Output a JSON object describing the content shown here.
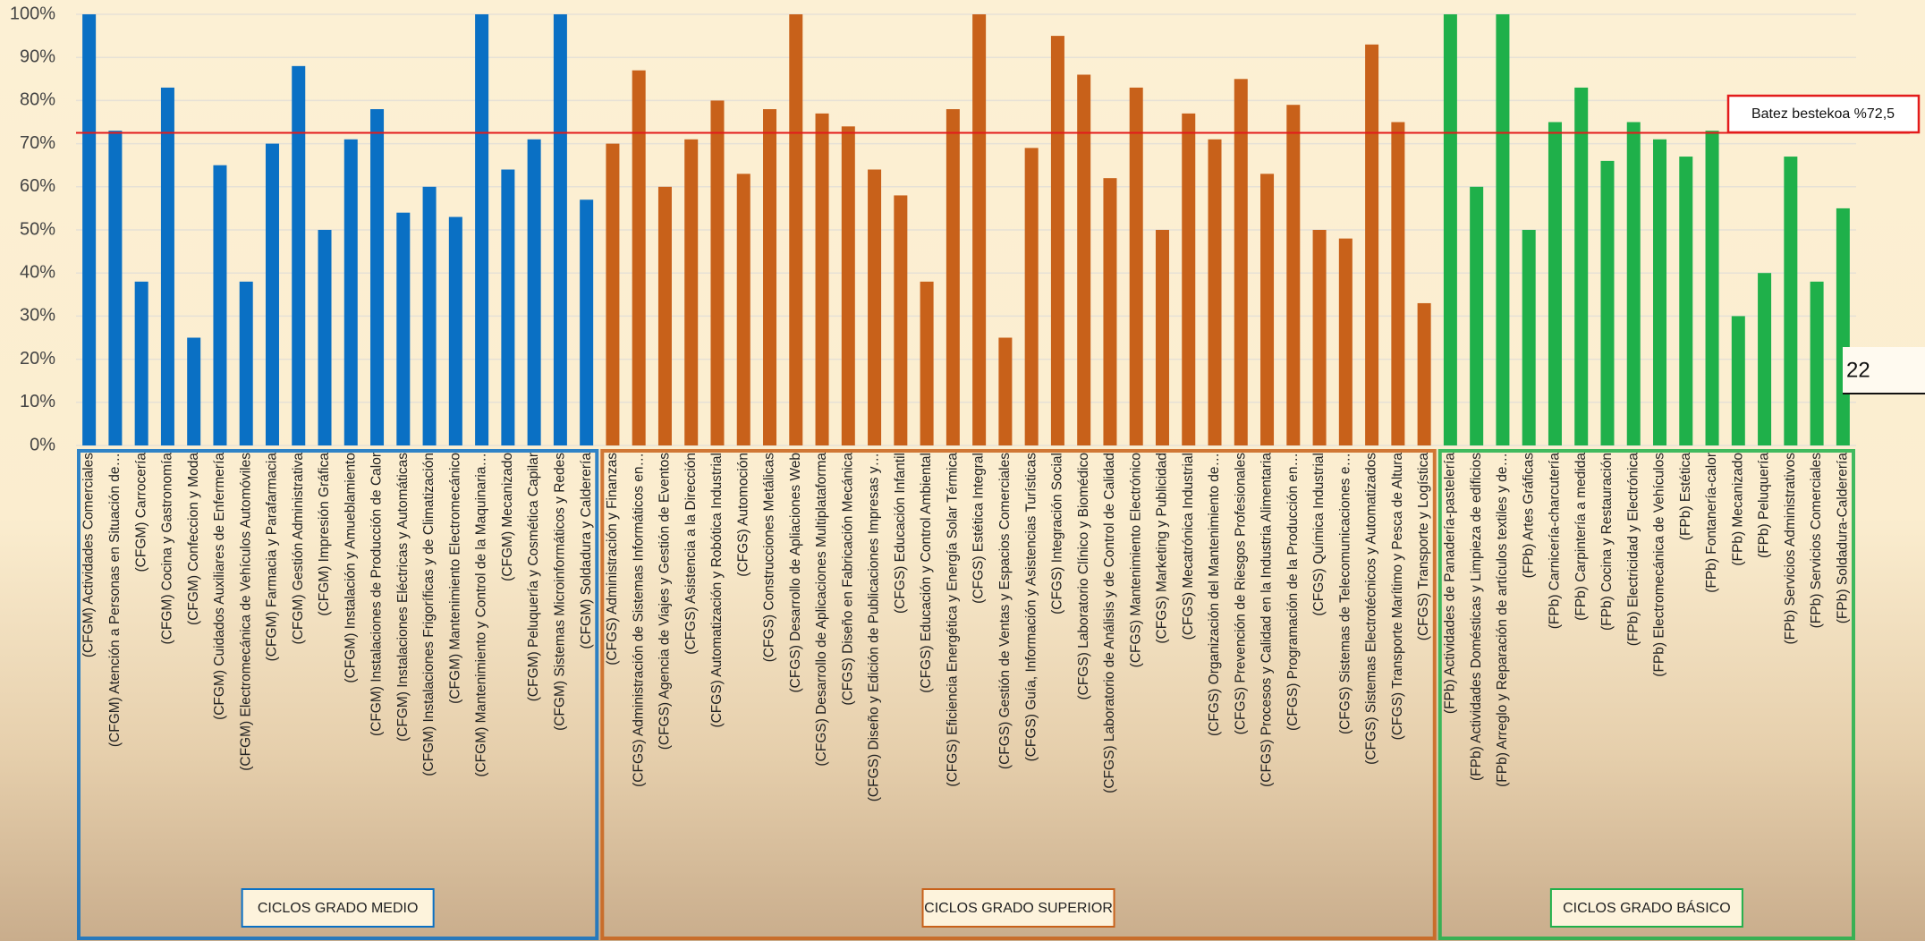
{
  "chart_data": {
    "type": "bar",
    "ylim": [
      0,
      100
    ],
    "yticks": [
      {
        "value": 0,
        "label": "0%"
      },
      {
        "value": 10,
        "label": "10%"
      },
      {
        "value": 20,
        "label": "20%"
      },
      {
        "value": 30,
        "label": "30%"
      },
      {
        "value": 40,
        "label": "40%"
      },
      {
        "value": 50,
        "label": "50%"
      },
      {
        "value": 60,
        "label": "60%"
      },
      {
        "value": 70,
        "label": "70%"
      },
      {
        "value": 80,
        "label": "80%"
      },
      {
        "value": 90,
        "label": "90%"
      },
      {
        "value": 100,
        "label": "100%"
      }
    ],
    "grid": true,
    "reference_line": {
      "value": 72.5,
      "label": "Batez bestekoa %72,5",
      "color": "#e31b1b"
    },
    "side_note": "22",
    "groups": [
      {
        "name": "CICLOS GRADO MEDIO",
        "color": "#0a70c4",
        "categories": [
          "(CFGM) Actividades Comerciales",
          "(CFGM) Atención a Personas en Situación de…",
          "(CFGM) Carrocería",
          "(CFGM) Cocina y Gastronomía",
          "(CFGM) Confeccion y Moda",
          "(CFGM) Cuidados Auxiliares de Enfermería",
          "(CFGM) Electromecánica de Vehículos Automóviles",
          "(CFGM) Farmacia y Parafarmacia",
          "(CFGM) Gestión Administrativa",
          "(CFGM) Impresión Gráfica",
          "(CFGM) Instalación y Amueblamiento",
          "(CFGM) Instalaciones de Producción de Calor",
          "(CFGM) Instalaciones Eléctricas y Automáticas",
          "(CFGM) Instalaciones Frigoríficas y de Climatización",
          "(CFGM) Mantenimiento Electromecánico",
          "(CFGM) Mantenimiento y Control de la Maquinaria…",
          "(CFGM) Mecanizado",
          "(CFGM) Peluquería y Cosmética Capilar",
          "(CFGM) Sistemas Microinformáticos y Redes",
          "(CFGM) Soldadura y Calderería"
        ],
        "values": [
          100,
          73,
          38,
          83,
          25,
          65,
          38,
          70,
          88,
          50,
          71,
          78,
          54,
          60,
          53,
          100,
          64,
          71,
          100,
          57
        ]
      },
      {
        "name": "CICLOS GRADO SUPERIOR",
        "color": "#c8611a",
        "categories": [
          "(CFGS) Administración y Finanzas",
          "(CFGS) Administración de Sistemas Informáticos en…",
          "(CFGS) Agencia de Viajes y Gestión de Eventos",
          "(CFGS) Asistencia a la Dirección",
          "(CFGS) Automatización y Robótica Industrial",
          "(CFGS) Automoción",
          "(CFGS) Construcciones Metálicas",
          "(CFGS) Desarrollo de Apliaciones Web",
          "(CFGS) Desarrollo de Aplicaciones Multiplataforma",
          "(CFGS) Diseño en Fabricación Mecánica",
          "(CFGS) Diseño y Edición de Publicaciones Impresas y…",
          "(CFGS) Educación Infantil",
          "(CFGS) Educación y Control Ambiental",
          "(CFGS) Eficiencia Energética y Energía Solar Térmica",
          "(CFGS) Estética Integral",
          "(CFGS) Gestión de Ventas y Espacios Comerciales",
          "(CFGS) Guía, Información y Asistencias Turísticas",
          "(CFGS) Integración Social",
          "(CFGS) Laboratorio Clínico y Biomédico",
          "(CFGS) Laboratorio de Análisis y de Control de Calidad",
          "(CFGS) Mantenimiento Electrónico",
          "(CFGS) Marketing y Publicidad",
          "(CFGS) Mecatrónica Industrial",
          "(CFGS) Organización del Mantenimiento de…",
          "(CFGS) Prevención de Riesgos Profesionales",
          "(CFGS) Procesos y Calidad en la Industria Alimentaria",
          "(CFGS) Programación de la Producción en…",
          "(CFGS) Química Industrial",
          "(CFGS) Sistemas de Telecomunicaciones e…",
          "(CFGS) Sistemas Electrotécnicos y Automatizados",
          "(CFGS) Transporte Marítimo y Pesca de Altura",
          "(CFGS) Transporte y Logística"
        ],
        "values": [
          70,
          87,
          60,
          71,
          80,
          63,
          78,
          100,
          77,
          74,
          64,
          58,
          38,
          78,
          100,
          25,
          69,
          95,
          86,
          62,
          83,
          50,
          77,
          71,
          85,
          63,
          79,
          50,
          48,
          93,
          75,
          33
        ]
      },
      {
        "name": "CICLOS GRADO BÁSICO",
        "color": "#1fb04a",
        "categories": [
          "(FPb) Actividades de Panadería-pastelería",
          "(FPb) Actividades Domésticas y Limpieza de edificios",
          "(FPb) Arreglo y Reparación de artículos textiles y de…",
          "(FPb) Artes Gráficas",
          "(FPb) Carnicería-charcutería",
          "(FPb) Carpintería a medida",
          "(FPb) Cocina y Restauración",
          "(FPb) Electricidad y Electrónica",
          "(FPb) Electromecánica de Vehículos",
          "(FPb) Estética",
          "(FPb) Fontanería-calor",
          "(FPb) Mecanizado",
          "(FPb) Peluquería",
          "(FPb) Servicios Administrativos",
          "(FPb) Servicios Comerciales",
          "(FPb) Soldadura-Calderería"
        ],
        "values": [
          100,
          60,
          100,
          50,
          75,
          83,
          66,
          75,
          71,
          67,
          73,
          30,
          40,
          67,
          38,
          55
        ]
      }
    ]
  }
}
